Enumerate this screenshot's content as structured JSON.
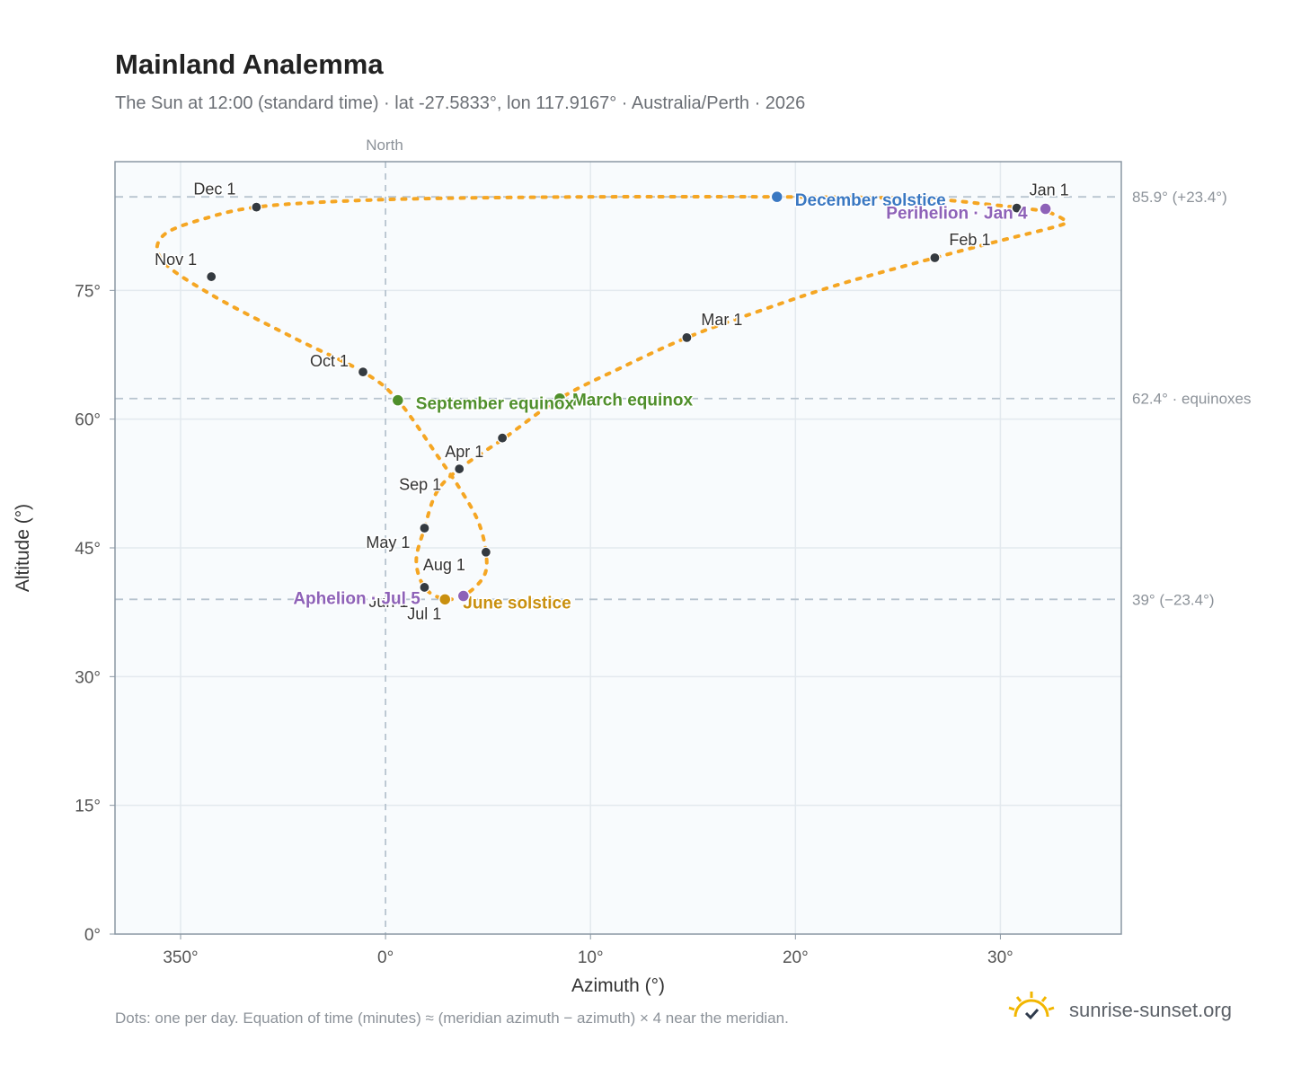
{
  "title": "Mainland Analemma",
  "subtitle": "The Sun at 12:00 (standard time) · lat -27.5833°, lon 117.9167° · Australia/Perth · 2026",
  "footnote": "Dots: one per day. Equation of time (minutes) ≈ (meridian azimuth − azimuth) × 4 near the meridian.",
  "brand": {
    "name": "sunrise-sunset.org",
    "icon": "sun-icon"
  },
  "colors": {
    "path": "#f5a623",
    "month_dot": "#343a40",
    "december_solstice": "#3a78c2",
    "june_solstice": "#c9900f",
    "equinox": "#4f8f2b",
    "apsis": "#8e62b8",
    "plot_bg": "#f8fbfd",
    "grid": "#e3e9ee",
    "ref_line": "#b7c4cf",
    "axis": "#8a97a3"
  },
  "chart_data": {
    "type": "scatter",
    "xlabel": "Azimuth (°)",
    "ylabel": "Altitude (°)",
    "x_ticks": [
      "350°",
      "0°",
      "10°",
      "20°",
      "30°"
    ],
    "x_tick_values": [
      -10,
      0,
      10,
      20,
      30
    ],
    "y_ticks": [
      "0°",
      "15°",
      "30°",
      "45°",
      "60°",
      "75°"
    ],
    "y_tick_values": [
      0,
      15,
      30,
      45,
      60,
      75
    ],
    "xlim": [
      -13.2,
      35.9
    ],
    "ylim": [
      0,
      90
    ],
    "grid": true,
    "meridian": {
      "label": "North",
      "azimuth": 0
    },
    "reference_lines": [
      {
        "altitude": 85.9,
        "label": "85.9° (+23.4°)"
      },
      {
        "altitude": 62.4,
        "label": "62.4° · equinoxes"
      },
      {
        "altitude": 39.0,
        "label": "39° (−23.4°)"
      }
    ],
    "path_points": [
      [
        32.4,
        84.1
      ],
      [
        33.0,
        83.4
      ],
      [
        33.2,
        82.9
      ],
      [
        32.5,
        82.3
      ],
      [
        30.0,
        80.8
      ],
      [
        26.8,
        78.8
      ],
      [
        22.0,
        75.6
      ],
      [
        18.0,
        72.4
      ],
      [
        14.7,
        69.5
      ],
      [
        11.5,
        66.0
      ],
      [
        8.5,
        62.4
      ],
      [
        5.8,
        57.8
      ],
      [
        3.6,
        54.2
      ],
      [
        2.5,
        51.5
      ],
      [
        1.9,
        47.3
      ],
      [
        1.5,
        43.5
      ],
      [
        1.9,
        40.4
      ],
      [
        2.8,
        39.1
      ],
      [
        3.8,
        39.4
      ],
      [
        4.8,
        41.7
      ],
      [
        4.9,
        44.5
      ],
      [
        4.5,
        48.2
      ],
      [
        3.6,
        52.0
      ],
      [
        2.6,
        55.5
      ],
      [
        0.6,
        62.2
      ],
      [
        -1.1,
        65.5
      ],
      [
        -4.5,
        69.5
      ],
      [
        -8.5,
        74.5
      ],
      [
        -10.9,
        78.5
      ],
      [
        -10.8,
        81.5
      ],
      [
        -8.5,
        83.6
      ],
      [
        -6.3,
        84.7
      ],
      [
        -3.0,
        85.3
      ],
      [
        2.0,
        85.7
      ],
      [
        10.0,
        85.9
      ],
      [
        19.1,
        85.9
      ],
      [
        26.0,
        85.7
      ],
      [
        29.5,
        85.0
      ],
      [
        31.7,
        84.4
      ],
      [
        32.4,
        84.1
      ]
    ],
    "month_markers": [
      {
        "label": "Jan 1",
        "azimuth": 30.8,
        "altitude": 84.6
      },
      {
        "label": "Feb 1",
        "azimuth": 26.8,
        "altitude": 78.8
      },
      {
        "label": "Mar 1",
        "azimuth": 14.7,
        "altitude": 69.5
      },
      {
        "label": "Apr 1",
        "azimuth": 3.6,
        "altitude": 54.2
      },
      {
        "label": "May 1",
        "azimuth": 1.9,
        "altitude": 47.3
      },
      {
        "label": "Jun 1",
        "azimuth": 1.9,
        "altitude": 40.4
      },
      {
        "label": "Jul 1",
        "azimuth": 2.9,
        "altitude": 39.0
      },
      {
        "label": "Aug 1",
        "azimuth": 4.9,
        "altitude": 44.5
      },
      {
        "label": "Sep 1",
        "azimuth": 5.7,
        "altitude": 57.8
      },
      {
        "label": "Oct 1",
        "azimuth": -1.1,
        "altitude": 65.5
      },
      {
        "label": "Nov 1",
        "azimuth": -8.5,
        "altitude": 76.6
      },
      {
        "label": "Dec 1",
        "azimuth": -6.3,
        "altitude": 84.7
      }
    ],
    "events": [
      {
        "label": "December solstice",
        "azimuth": 19.1,
        "altitude": 85.9,
        "kind": "december_solstice"
      },
      {
        "label": "Perihelion · Jan 4",
        "azimuth": 32.2,
        "altitude": 84.5,
        "kind": "apsis"
      },
      {
        "label": "March equinox",
        "azimuth": 8.5,
        "altitude": 62.4,
        "kind": "equinox"
      },
      {
        "label": "September equinox",
        "azimuth": 0.6,
        "altitude": 62.2,
        "kind": "equinox"
      },
      {
        "label": "June solstice",
        "azimuth": 2.9,
        "altitude": 39.0,
        "kind": "june_solstice"
      },
      {
        "label": "Aphelion · Jul 5",
        "azimuth": 3.8,
        "altitude": 39.4,
        "kind": "apsis"
      }
    ]
  }
}
